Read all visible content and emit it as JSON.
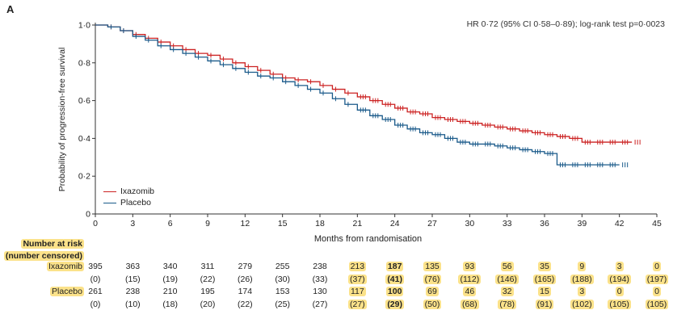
{
  "panel_label": "A",
  "hr_text": "HR 0·72 (95% CI 0·58–0·89); log-rank test p=0·0023",
  "risk_table": {
    "header_line1": "Number at risk",
    "header_line2": "(number censored)",
    "rows": [
      {
        "name": "Ixazomib",
        "color": "#cc2222",
        "at_risk": [
          "395",
          "363",
          "340",
          "311",
          "279",
          "255",
          "238",
          "213",
          "187",
          "135",
          "93",
          "56",
          "35",
          "9",
          "3",
          "0"
        ],
        "censored": [
          "(0)",
          "(15)",
          "(19)",
          "(22)",
          "(26)",
          "(30)",
          "(33)",
          "(37)",
          "(41)",
          "(76)",
          "(112)",
          "(146)",
          "(165)",
          "(188)",
          "(194)",
          "(197)"
        ]
      },
      {
        "name": "Placebo",
        "color": "#1a5a8a",
        "at_risk": [
          "261",
          "238",
          "210",
          "195",
          "174",
          "153",
          "130",
          "117",
          "100",
          "69",
          "46",
          "32",
          "15",
          "3",
          "0",
          "0"
        ],
        "censored": [
          "(0)",
          "(10)",
          "(18)",
          "(20)",
          "(22)",
          "(25)",
          "(27)",
          "(27)",
          "(29)",
          "(50)",
          "(68)",
          "(78)",
          "(91)",
          "(102)",
          "(105)",
          "(105)"
        ]
      }
    ],
    "highlight_from_index": 7,
    "highlight_color": "#fbe28a"
  },
  "chart_data": {
    "type": "line",
    "title": "",
    "xlabel": "Months from randomisation",
    "ylabel": "Probability of progression-free survival",
    "xlim": [
      0,
      45
    ],
    "ylim": [
      0,
      1.0
    ],
    "x_ticks": [
      "0",
      "3",
      "6",
      "9",
      "12",
      "15",
      "18",
      "21",
      "24",
      "27",
      "30",
      "33",
      "36",
      "39",
      "42",
      "45"
    ],
    "y_ticks": [
      "0",
      "0·2",
      "0·4",
      "0·6",
      "0·8",
      "1·0"
    ],
    "y_tick_values": [
      0,
      0.2,
      0.4,
      0.6,
      0.8,
      1.0
    ],
    "legend_position": "bottom-left",
    "series": [
      {
        "name": "Ixazomib",
        "color": "#cc2222",
        "x": [
          0,
          1,
          2,
          3,
          4,
          5,
          6,
          7,
          8,
          9,
          10,
          11,
          12,
          13,
          14,
          15,
          16,
          17,
          18,
          19,
          20,
          21,
          22,
          23,
          24,
          25,
          26,
          27,
          28,
          29,
          30,
          31,
          32,
          33,
          34,
          35,
          36,
          37,
          38,
          39,
          40,
          41,
          42,
          43
        ],
        "y": [
          1.0,
          0.99,
          0.97,
          0.95,
          0.93,
          0.91,
          0.89,
          0.87,
          0.85,
          0.84,
          0.82,
          0.8,
          0.78,
          0.76,
          0.74,
          0.72,
          0.71,
          0.7,
          0.68,
          0.66,
          0.64,
          0.62,
          0.6,
          0.58,
          0.56,
          0.54,
          0.53,
          0.51,
          0.5,
          0.49,
          0.48,
          0.47,
          0.46,
          0.45,
          0.44,
          0.43,
          0.42,
          0.41,
          0.4,
          0.38,
          0.38,
          0.38,
          0.38,
          0.38
        ]
      },
      {
        "name": "Placebo",
        "color": "#1a5a8a",
        "x": [
          0,
          1,
          2,
          3,
          4,
          5,
          6,
          7,
          8,
          9,
          10,
          11,
          12,
          13,
          14,
          15,
          16,
          17,
          18,
          19,
          20,
          21,
          22,
          23,
          24,
          25,
          26,
          27,
          28,
          29,
          30,
          31,
          32,
          33,
          34,
          35,
          36,
          37,
          38,
          39,
          40,
          41,
          42
        ],
        "y": [
          1.0,
          0.99,
          0.97,
          0.94,
          0.92,
          0.89,
          0.87,
          0.85,
          0.83,
          0.81,
          0.79,
          0.77,
          0.75,
          0.73,
          0.72,
          0.7,
          0.68,
          0.66,
          0.64,
          0.61,
          0.58,
          0.55,
          0.52,
          0.5,
          0.47,
          0.45,
          0.43,
          0.42,
          0.4,
          0.38,
          0.37,
          0.37,
          0.36,
          0.35,
          0.34,
          0.33,
          0.32,
          0.26,
          0.26,
          0.26,
          0.26,
          0.26,
          0.26
        ]
      }
    ]
  }
}
